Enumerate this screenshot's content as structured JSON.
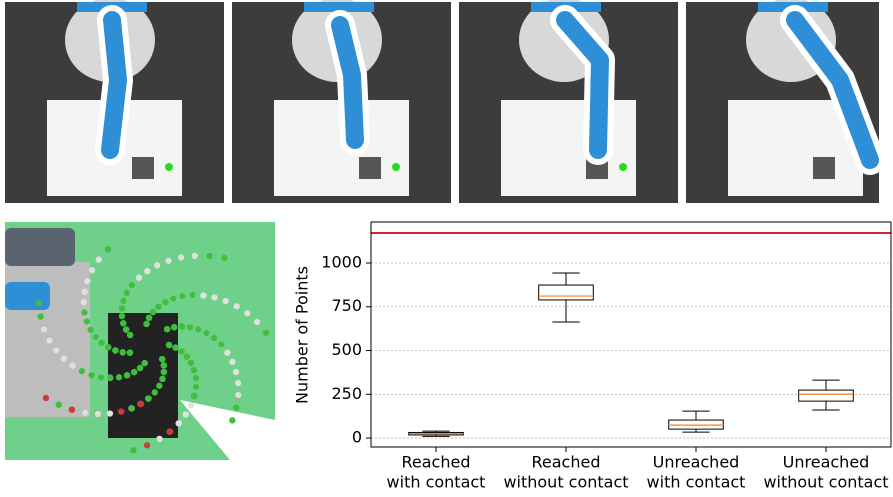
{
  "chart_data": {
    "type": "box",
    "y_label": "Number of Points",
    "categories": [
      [
        "Reached",
        "with contact"
      ],
      [
        "Reached",
        "without contact"
      ],
      [
        "Unreached",
        "with contact"
      ],
      [
        "Unreached",
        "without contact"
      ]
    ],
    "boxes": [
      {
        "min": 10,
        "q1": 18,
        "median": 25,
        "q3": 32,
        "max": 40
      },
      {
        "min": 663,
        "q1": 789,
        "median": 811,
        "q3": 874,
        "max": 943
      },
      {
        "min": 34,
        "q1": 51,
        "median": 74,
        "q3": 103,
        "max": 154
      },
      {
        "min": 160,
        "q1": 211,
        "median": 251,
        "q3": 274,
        "max": 331
      }
    ],
    "box_color": "#000000",
    "median_color": "#ff7f0e",
    "hline": {
      "value": 1171,
      "color": "#d62728"
    },
    "ylim": [
      -51,
      1234
    ],
    "yticks": [
      0,
      250,
      500,
      750,
      1000
    ],
    "grid": true
  }
}
